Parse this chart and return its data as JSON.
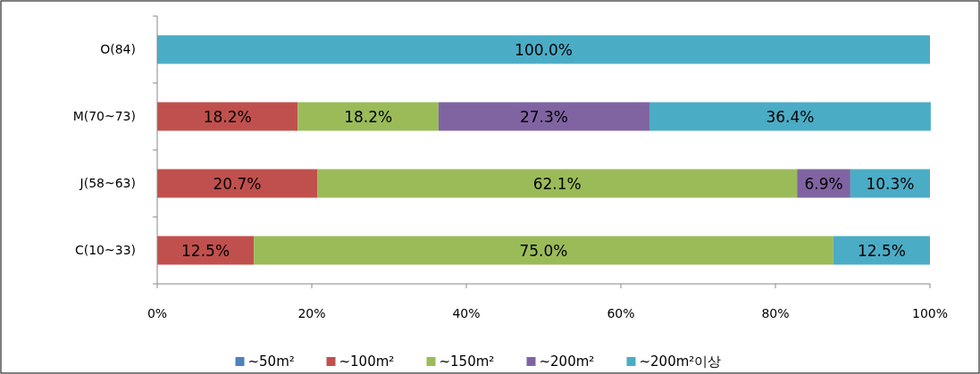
{
  "chart_data": {
    "type": "bar",
    "orientation": "horizontal",
    "stacked": true,
    "categories": [
      "O(84)",
      "M(70~73)",
      "J(58~63)",
      "C(10~33)"
    ],
    "series": [
      {
        "name": "~50m²",
        "color": "#4f81bd",
        "values": [
          null,
          null,
          null,
          null
        ],
        "value_labels": [
          null,
          null,
          null,
          null
        ]
      },
      {
        "name": "~100m²",
        "color": "#c0504d",
        "values": [
          null,
          18.2,
          20.7,
          12.5
        ],
        "value_labels": [
          null,
          "18.2%",
          "20.7%",
          "12.5%"
        ]
      },
      {
        "name": "~150m²",
        "color": "#9bbb59",
        "values": [
          null,
          18.2,
          62.1,
          75.0
        ],
        "value_labels": [
          null,
          "18.2%",
          "62.1%",
          "75.0%"
        ]
      },
      {
        "name": "~200m²",
        "color": "#8064a2",
        "values": [
          null,
          27.3,
          6.9,
          null
        ],
        "value_labels": [
          null,
          "27.3%",
          "6.9%",
          null
        ]
      },
      {
        "name": "~200m²이상",
        "color": "#4bacc6",
        "values": [
          100.0,
          36.4,
          10.3,
          12.5
        ],
        "value_labels": [
          "100.0%",
          "36.4%",
          "10.3%",
          "12.5%"
        ]
      }
    ],
    "xlim": [
      0,
      100
    ],
    "xticks": [
      {
        "value": 0,
        "label": "0%"
      },
      {
        "value": 20,
        "label": "20%"
      },
      {
        "value": 40,
        "label": "40%"
      },
      {
        "value": 60,
        "label": "60%"
      },
      {
        "value": 80,
        "label": "80%"
      },
      {
        "value": 100,
        "label": "100%"
      }
    ],
    "legend": "bottom"
  }
}
